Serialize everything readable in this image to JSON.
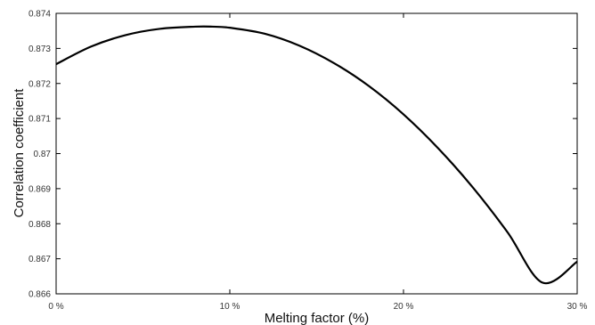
{
  "chart_data": {
    "type": "line",
    "xlabel": "Melting factor (%)",
    "ylabel": "Correlation coefficient",
    "xlim": [
      0,
      30
    ],
    "ylim": [
      0.866,
      0.874
    ],
    "x_ticks": [
      0,
      10,
      20,
      30
    ],
    "x_tick_labels": [
      "0 %",
      "10 %",
      "20 %",
      "30 %"
    ],
    "y_ticks": [
      0.866,
      0.867,
      0.868,
      0.869,
      0.87,
      0.871,
      0.872,
      0.873,
      0.874
    ],
    "y_tick_labels": [
      "0.866",
      "0.867",
      "0.868",
      "0.869",
      "0.87",
      "0.871",
      "0.872",
      "0.873",
      "0.874"
    ],
    "grid": false,
    "series": [
      {
        "color": "#000000",
        "x": [
          0,
          2,
          4,
          6,
          8,
          9,
          10,
          12,
          14,
          16,
          18,
          20,
          22,
          24,
          26,
          28,
          30
        ],
        "y": [
          0.87255,
          0.87305,
          0.87338,
          0.87356,
          0.87362,
          0.87362,
          0.87359,
          0.87342,
          0.87308,
          0.87258,
          0.87193,
          0.87112,
          0.87015,
          0.86903,
          0.86775,
          0.86632,
          0.86692
        ]
      }
    ]
  }
}
